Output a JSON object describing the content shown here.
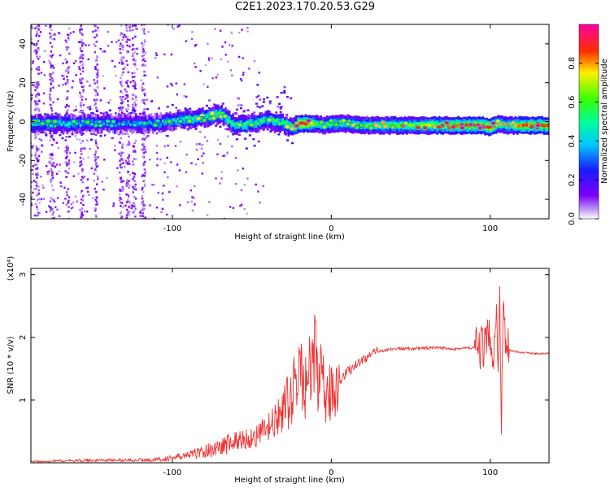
{
  "title": "C2E1.2023.170.20.53.G29",
  "chart_data": [
    {
      "type": "heatmap",
      "xlabel": "Height of straight line (km)",
      "ylabel": "Frequency (Hz)",
      "xlim": [
        -189,
        137
      ],
      "ylim": [
        -50,
        50
      ],
      "xticks": [
        -100,
        0,
        100
      ],
      "yticks": [
        -40,
        -20,
        0,
        20,
        40
      ],
      "colorbar": {
        "label": "Normalized spectral amplitude",
        "range": [
          0,
          1
        ],
        "ticks": [
          0.0,
          0.2,
          0.4,
          0.6,
          0.8
        ],
        "colormap": "rainbow (violet-blue-cyan-green-yellow-red-magenta)"
      },
      "ridge": {
        "x": [
          -189,
          -160,
          -130,
          -110,
          -95,
          -80,
          -70,
          -60,
          -50,
          -40,
          -30,
          -25,
          -20,
          -15,
          -10,
          -5,
          0,
          10,
          20,
          40,
          60,
          80,
          95,
          100,
          105,
          110,
          120,
          137
        ],
        "freq": [
          -1,
          -1,
          -1,
          -1,
          1,
          2,
          4,
          -2,
          -1,
          1,
          -1,
          -3,
          -1,
          -1,
          -1,
          -2,
          -1,
          -1,
          -2,
          -2,
          -2,
          -2,
          -2,
          -3,
          -1,
          -2,
          -2,
          -2
        ],
        "amp": [
          0.45,
          0.45,
          0.35,
          0.4,
          0.5,
          0.55,
          0.6,
          0.5,
          0.55,
          0.55,
          0.55,
          0.6,
          0.9,
          0.9,
          0.6,
          0.55,
          0.6,
          0.6,
          0.6,
          0.65,
          0.7,
          0.85,
          0.9,
          0.95,
          0.7,
          0.6,
          0.85,
          0.85
        ]
      }
    },
    {
      "type": "line",
      "xlabel": "Height of straight line (km)",
      "ylabel": "SNR (10 * v/v)",
      "yscale_label": "(x10⁴)",
      "xlim": [
        -189,
        137
      ],
      "ylim": [
        0,
        3.1
      ],
      "xticks": [
        -100,
        0,
        100
      ],
      "yticks": [
        1,
        2,
        3
      ],
      "color": "#ee3333",
      "series": [
        {
          "x": [
            -189,
            -170,
            -150,
            -130,
            -110,
            -100,
            -90,
            -80,
            -70,
            -60,
            -50,
            -45,
            -40,
            -35,
            -30,
            -25,
            -22,
            -20,
            -18,
            -15,
            -12,
            -10,
            -8,
            -5,
            -3,
            0,
            5,
            10,
            15,
            20,
            25,
            30,
            40,
            50,
            60,
            70,
            80,
            85,
            90,
            95,
            98,
            100,
            102,
            104,
            105,
            106,
            107,
            108,
            110,
            113,
            120,
            130,
            137
          ],
          "y": [
            0.02,
            0.03,
            0.04,
            0.04,
            0.05,
            0.08,
            0.12,
            0.18,
            0.25,
            0.35,
            0.4,
            0.45,
            0.55,
            0.65,
            0.85,
            1.05,
            1.3,
            1.6,
            1.2,
            1.3,
            1.5,
            1.8,
            1.4,
            1.2,
            0.9,
            1.2,
            1.3,
            1.45,
            1.55,
            1.65,
            1.72,
            1.78,
            1.82,
            1.82,
            1.83,
            1.83,
            1.82,
            1.83,
            1.83,
            1.84,
            1.9,
            2.1,
            1.7,
            2.5,
            1.2,
            2.9,
            0.6,
            2.5,
            1.9,
            1.78,
            1.76,
            1.74,
            1.74
          ]
        }
      ]
    }
  ]
}
